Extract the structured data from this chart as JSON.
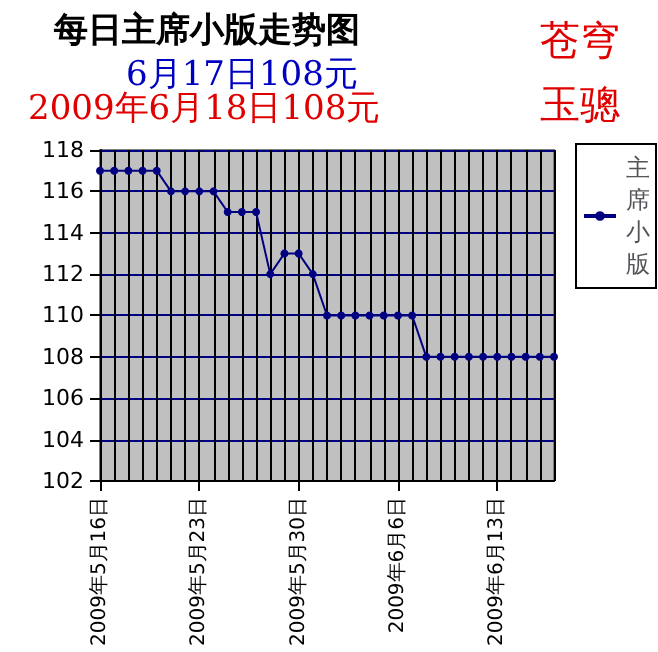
{
  "chart_data": {
    "type": "line",
    "title": "每日主席小版走势图",
    "subtitle": "6月17日108元",
    "annotations": [
      "2009年6月18日108元",
      "苍穹",
      "玉骢"
    ],
    "categories": [
      "2009年5月16日",
      null,
      null,
      null,
      null,
      null,
      null,
      "2009年5月23日",
      null,
      null,
      null,
      null,
      null,
      null,
      "2009年5月30日",
      null,
      null,
      null,
      null,
      null,
      null,
      "2009年6月6日",
      null,
      null,
      null,
      null,
      null,
      null,
      "2009年6月13日",
      null,
      null,
      null,
      null
    ],
    "series": [
      {
        "name": "主席小版",
        "color": "#000080",
        "values": [
          117,
          117,
          117,
          117,
          117,
          116,
          116,
          116,
          116,
          115,
          115,
          115,
          112,
          113,
          113,
          112,
          110,
          110,
          110,
          110,
          110,
          110,
          110,
          108,
          108,
          108,
          108,
          108,
          108,
          108,
          108,
          108,
          108
        ]
      }
    ],
    "ylim": [
      102,
      118
    ],
    "yticks": [
      102,
      104,
      106,
      108,
      110,
      112,
      114,
      116,
      118
    ],
    "grid": true,
    "legend": "right",
    "marker": "circle",
    "line_style": "solid"
  }
}
